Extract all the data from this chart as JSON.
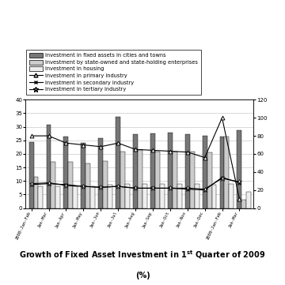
{
  "x_labels": [
    "2008-Jan-Feb",
    "Jan-Mar",
    "Jan-Apr",
    "Jan-May",
    "Jan-Jun",
    "Jan-Jul",
    "Jan-Aug",
    "Jan-Sep",
    "Jan-Oct",
    "Jan-Nov",
    "Jan-Dec",
    "2009-Jan-Feb",
    "Jan-Mar"
  ],
  "bar_fixed_assets": [
    24.3,
    30.9,
    26.4,
    24.0,
    25.9,
    33.6,
    27.3,
    27.6,
    27.8,
    27.2,
    26.6,
    26.5,
    28.6
  ],
  "bar_state_owned": [
    11.5,
    17.0,
    17.0,
    16.5,
    17.5,
    21.0,
    21.5,
    21.0,
    21.0,
    21.0,
    20.5,
    26.5,
    3.0
  ],
  "bar_housing": [
    8.0,
    8.0,
    8.0,
    8.0,
    8.5,
    9.0,
    9.0,
    9.0,
    9.0,
    9.0,
    8.5,
    9.0,
    6.0
  ],
  "line_primary": [
    80,
    80,
    72,
    70,
    68,
    72,
    65,
    64,
    63,
    62,
    56,
    100,
    10
  ],
  "line_secondary": [
    26,
    27,
    26,
    24,
    23,
    24,
    22,
    22,
    22,
    21,
    20,
    34,
    28
  ],
  "line_tertiary": [
    27,
    28,
    25,
    24,
    23,
    24,
    22,
    22,
    22,
    22,
    21,
    33,
    29
  ],
  "left_ylim": [
    0,
    40
  ],
  "right_ylim": [
    0,
    120
  ],
  "left_yticks": [
    0,
    5,
    10,
    15,
    20,
    25,
    30,
    35,
    40
  ],
  "right_yticks": [
    0,
    20,
    40,
    60,
    80,
    100,
    120
  ],
  "bar_color_fixed": "#777777",
  "bar_color_state": "#cccccc",
  "bar_color_housing": "#eeeeee",
  "line_color": "#000000",
  "legend_labels": [
    "Investment in fixed assets in cities and towns",
    "Investment by state-owned and state-holding enterprises",
    "Investment in housing",
    "Investment in primary industry",
    "Investment in secondary industry",
    "Investment in tertiary industry"
  ]
}
